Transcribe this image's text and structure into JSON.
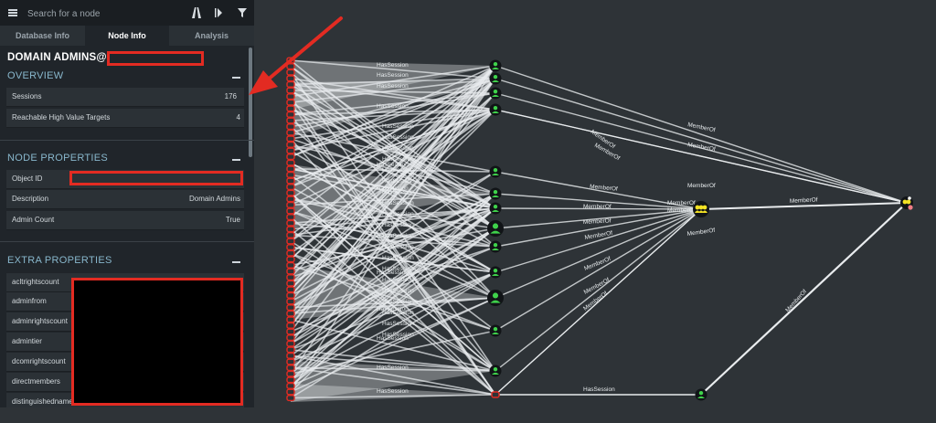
{
  "search": {
    "placeholder": "Search for a node"
  },
  "toolbar": {
    "icons": [
      "path-icon",
      "back-forward-icon",
      "filter-icon"
    ]
  },
  "tabs": [
    {
      "label": "Database Info",
      "active": false
    },
    {
      "label": "Node Info",
      "active": true
    },
    {
      "label": "Analysis",
      "active": false
    }
  ],
  "node": {
    "title": "DOMAIN ADMINS@"
  },
  "overview": {
    "heading": "OVERVIEW",
    "rows": [
      {
        "label": "Sessions",
        "value": "176"
      },
      {
        "label": "Reachable High Value Targets",
        "value": "4"
      }
    ]
  },
  "node_properties": {
    "heading": "NODE PROPERTIES",
    "rows": [
      {
        "label": "Object ID",
        "value": ""
      },
      {
        "label": "Description",
        "value": "Domain Admins"
      },
      {
        "label": "Admin Count",
        "value": "True"
      }
    ]
  },
  "extra_properties": {
    "heading": "EXTRA PROPERTIES",
    "rows": [
      {
        "label": "acltrightscount"
      },
      {
        "label": "adminfrom"
      },
      {
        "label": "adminrightscount"
      },
      {
        "label": "admintier"
      },
      {
        "label": "dcomrightscount"
      },
      {
        "label": "directmembers"
      },
      {
        "label": "distinguishedname"
      }
    ]
  },
  "graph": {
    "labels": {
      "member_of": "MemberOf",
      "has_session": "HasSession"
    },
    "colors": {
      "user_node": "#3fd24b",
      "group_node": "#f3e224",
      "highlight": "#e32b22",
      "edge": "#e9ecee"
    }
  }
}
